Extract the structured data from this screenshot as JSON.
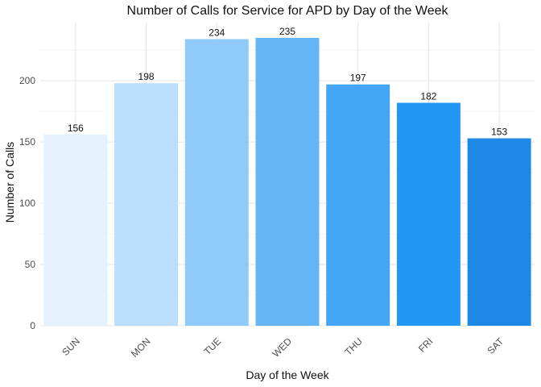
{
  "chart_data": {
    "type": "bar",
    "title": "Number of Calls for Service for APD by Day of the Week",
    "xlabel": "Day of the Week",
    "ylabel": "Number of Calls",
    "categories": [
      "SUN",
      "MON",
      "TUE",
      "WED",
      "THU",
      "FRI",
      "SAT"
    ],
    "values": [
      156,
      198,
      234,
      235,
      197,
      182,
      153
    ],
    "colors": [
      "#e3f2fd",
      "#bbdefb",
      "#90caf9",
      "#64b5f6",
      "#42a5f5",
      "#2196f3",
      "#1e88e5"
    ],
    "ylim": [
      0,
      250
    ],
    "yticks": [
      0,
      50,
      100,
      150,
      200
    ],
    "grid": true,
    "data_labels": true,
    "legend": "none"
  }
}
